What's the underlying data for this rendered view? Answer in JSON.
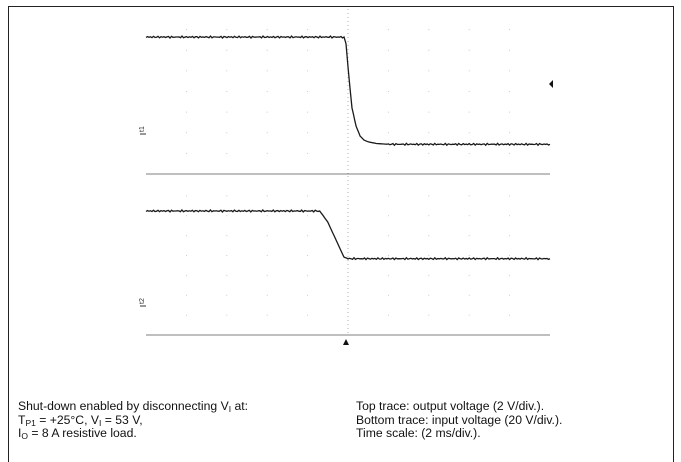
{
  "chart_data": [
    {
      "type": "line",
      "panel": "top",
      "xlim": [
        0,
        10
      ],
      "ylim": [
        0,
        10
      ],
      "grid": true,
      "x": [
        0,
        4.9,
        4.95,
        5.0,
        5.05,
        5.1,
        5.2,
        5.3,
        5.4,
        5.5,
        5.7,
        6.0,
        10
      ],
      "series": [
        {
          "values": [
            8.3,
            8.3,
            7.9,
            6.5,
            5.2,
            4.0,
            2.9,
            2.3,
            2.05,
            1.95,
            1.85,
            1.8,
            1.8
          ]
        }
      ],
      "marker_label": "t1"
    },
    {
      "type": "line",
      "panel": "bottom",
      "xlim": [
        0,
        10
      ],
      "ylim": [
        0,
        10
      ],
      "grid": true,
      "x": [
        0,
        4.3,
        4.5,
        4.7,
        4.9,
        5.0,
        10
      ],
      "series": [
        {
          "values": [
            7.8,
            7.8,
            7.1,
            6.0,
            4.9,
            4.8,
            4.8
          ]
        }
      ],
      "marker_label": "t2"
    }
  ],
  "caption_left": {
    "line1_prefix": "Shut-down enabled by disconnecting V",
    "line1_sub": "I",
    "line1_suffix": " at:",
    "line2_a": "T",
    "line2_a_sub": "P1",
    "line2_b": " = +25°C, V",
    "line2_b_sub": "I",
    "line2_c": " = 53 V,",
    "line3_a": "I",
    "line3_a_sub": "O",
    "line3_b": " = 8 A resistive load."
  },
  "caption_right": {
    "line1": "Top trace: output voltage (2 V/div.).",
    "line2": "Bottom trace: input voltage (20 V/div.).",
    "line3": "Time scale: (2 ms/div.)."
  }
}
